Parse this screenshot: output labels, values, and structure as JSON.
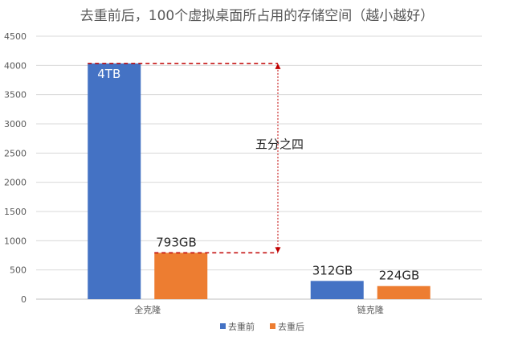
{
  "chart_data": {
    "type": "bar",
    "title": "去重前后，100个虚拟桌面所占用的存储空间（越小越好）",
    "categories": [
      "全克隆",
      "链克隆"
    ],
    "series": [
      {
        "name": "去重前",
        "values": [
          4034,
          312
        ],
        "data_labels": [
          "4TB",
          "312GB"
        ],
        "color": "#4472C4"
      },
      {
        "name": "去重后",
        "values": [
          793,
          224
        ],
        "data_labels": [
          "793GB",
          "224GB"
        ],
        "color": "#ED7D31"
      }
    ],
    "ylim": [
      0,
      4500
    ],
    "yticks": [
      0,
      500,
      1000,
      1500,
      2000,
      2500,
      3000,
      3500,
      4000,
      4500
    ],
    "grid": true,
    "legend_position": "bottom",
    "annotation": {
      "text": "五分之四",
      "from_value": 4034,
      "to_value": 793,
      "color": "#C00000"
    }
  }
}
